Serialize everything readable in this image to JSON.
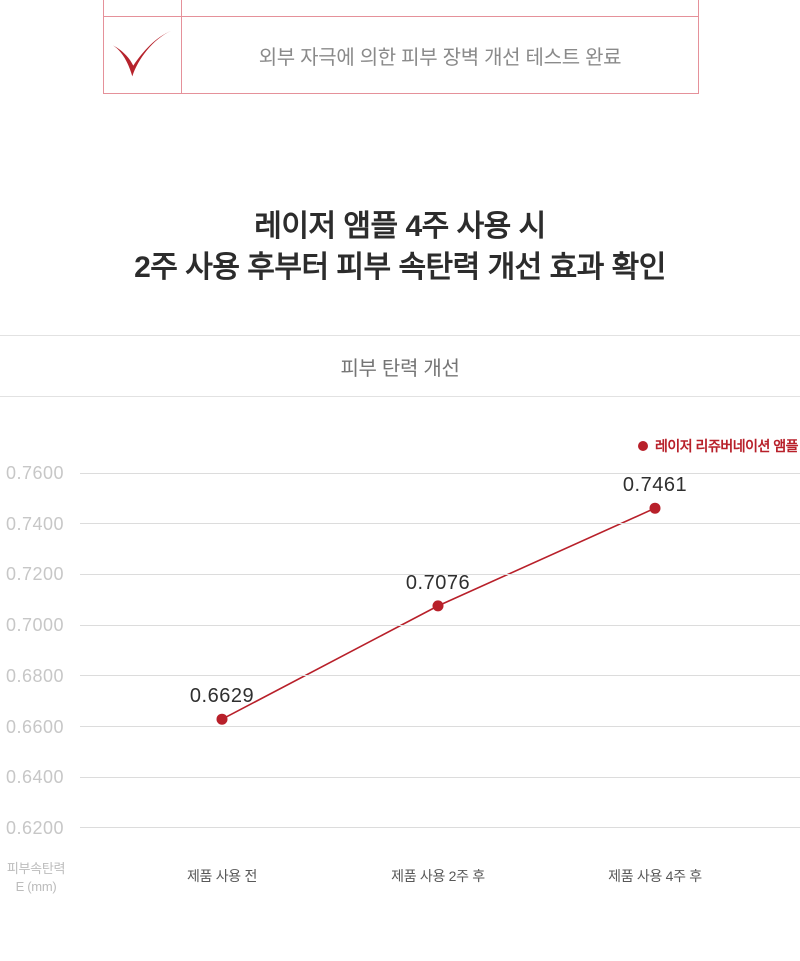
{
  "colors": {
    "accent_red": "#b8202a",
    "check_red": "#b6232c",
    "table_border": "#e5919a",
    "gridline": "#dcdcdc",
    "ytick_text": "#c7c7c7"
  },
  "checklist": {
    "item_label": "외부 자극에 의한 피부 장벽 개선 테스트 완료"
  },
  "heading": {
    "line1": "레이저 앰플 4주 사용 시",
    "line2": "2주 사용 후부터 피부 속탄력 개선 효과 확인"
  },
  "chart_section": {
    "title": "피부 탄력 개선"
  },
  "chart_data": {
    "type": "line",
    "title": "피부 탄력 개선",
    "categories": [
      "제품 사용 전",
      "제품 사용 2주 후",
      "제품 사용 4주 후"
    ],
    "series": [
      {
        "name": "레이저 리쥬버네이션 앰플",
        "values": [
          0.6629,
          0.7076,
          0.7461
        ],
        "color": "#b8202a"
      }
    ],
    "data_labels": [
      "0.6629",
      "0.7076",
      "0.7461"
    ],
    "yticks": [
      "0.7600",
      "0.7400",
      "0.7200",
      "0.7000",
      "0.6800",
      "0.6600",
      "0.6400",
      "0.6200"
    ],
    "ylim": [
      0.62,
      0.76
    ],
    "ytick_step": 0.02,
    "ylabel_line1": "피부속탄력",
    "ylabel_line2": "E (mm)",
    "grid": true,
    "legend_position": "top-right"
  }
}
